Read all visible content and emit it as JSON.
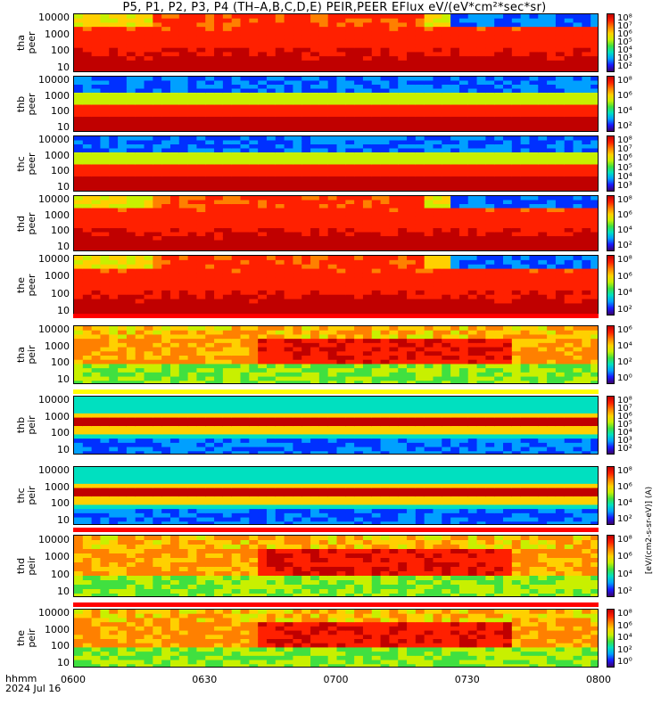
{
  "title": "P5, P1, P2, P3, P4 (TH–A,B,C,D,E) PEIR,PEER EFlux eV/(eV*cm²*sec*sr)",
  "footer": {
    "row1": "hhmm",
    "row2": "2024 Jul 16"
  },
  "colorbar_unit": "[eV/(cm2-s-sr-eV)] (A)",
  "colors": {
    "high": "#c00000",
    "mid": "#ffb000",
    "low": "#2040ff",
    "noise": "#000080"
  },
  "chart_data": {
    "type": "heatmap",
    "x": {
      "ticks": [
        "0600",
        "0630",
        "0700",
        "0730",
        "0800"
      ],
      "range": [
        "06:00",
        "08:00"
      ],
      "label": "hhmm"
    },
    "panels": [
      {
        "name": "tha peer",
        "ylabel1": "tha",
        "ylabel2": "peer",
        "y_ticks": [
          "10000",
          "1000",
          "100",
          "10"
        ],
        "cbar_ticks": [
          "10⁸",
          "10⁷",
          "10⁶",
          "10⁵",
          "10⁴",
          "10³",
          "10²"
        ],
        "style": "peer_active"
      },
      {
        "name": "thb peer",
        "ylabel1": "thb",
        "ylabel2": "peer",
        "y_ticks": [
          "10000",
          "1000",
          "100",
          "10"
        ],
        "cbar_ticks": [
          "10⁸",
          "10⁶",
          "10⁴",
          "10²"
        ],
        "style": "peer_quiet"
      },
      {
        "name": "thc peer",
        "ylabel1": "thc",
        "ylabel2": "peer",
        "y_ticks": [
          "10000",
          "1000",
          "100",
          "10"
        ],
        "cbar_ticks": [
          "10⁸",
          "10⁷",
          "10⁶",
          "10⁵",
          "10⁴",
          "10³"
        ],
        "style": "peer_quiet"
      },
      {
        "name": "thd peer",
        "ylabel1": "thd",
        "ylabel2": "peer",
        "y_ticks": [
          "10000",
          "1000",
          "100",
          "10"
        ],
        "cbar_ticks": [
          "10⁸",
          "10⁶",
          "10⁴",
          "10²"
        ],
        "style": "peer_active"
      },
      {
        "name": "the peer",
        "ylabel1": "the",
        "ylabel2": "peer",
        "y_ticks": [
          "10000",
          "1000",
          "100",
          "10"
        ],
        "cbar_ticks": [
          "10⁸",
          "10⁶",
          "10⁴",
          "10²"
        ],
        "style": "peer_active"
      },
      {
        "name": "tha peir",
        "ylabel1": "tha",
        "ylabel2": "peir",
        "y_ticks": [
          "10000",
          "1000",
          "100",
          "10"
        ],
        "cbar_ticks": [
          "10⁶",
          "10⁴",
          "10²",
          "10⁰"
        ],
        "style": "peir_active"
      },
      {
        "name": "thb peir",
        "ylabel1": "thb",
        "ylabel2": "peir",
        "y_ticks": [
          "10000",
          "1000",
          "100",
          "10"
        ],
        "cbar_ticks": [
          "10⁸",
          "10⁷",
          "10⁶",
          "10⁵",
          "10⁴",
          "10³",
          "10²"
        ],
        "style": "peir_band"
      },
      {
        "name": "thc peir",
        "ylabel1": "thc",
        "ylabel2": "peir",
        "y_ticks": [
          "10000",
          "1000",
          "100",
          "10"
        ],
        "cbar_ticks": [
          "10⁸",
          "10⁶",
          "10⁴",
          "10²"
        ],
        "style": "peir_band"
      },
      {
        "name": "thd peir",
        "ylabel1": "thd",
        "ylabel2": "peir",
        "y_ticks": [
          "10000",
          "1000",
          "100",
          "10"
        ],
        "cbar_ticks": [
          "10⁸",
          "10⁶",
          "10⁴",
          "10²"
        ],
        "style": "peir_active"
      },
      {
        "name": "the peir",
        "ylabel1": "the",
        "ylabel2": "peir",
        "y_ticks": [
          "10000",
          "1000",
          "100",
          "10"
        ],
        "cbar_ticks": [
          "10⁸",
          "10⁶",
          "10⁴",
          "10²",
          "10⁰"
        ],
        "style": "peir_active"
      }
    ]
  }
}
